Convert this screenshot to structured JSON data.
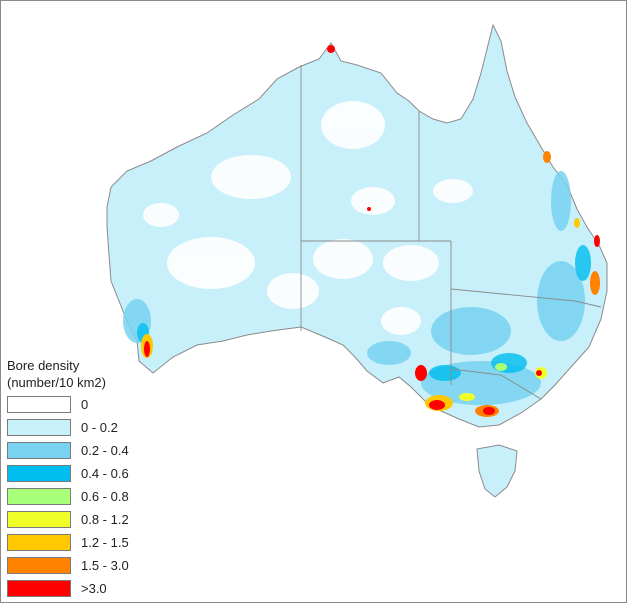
{
  "legend": {
    "title_line1": "Bore density",
    "title_line2": "(number/10 km2)",
    "items": [
      {
        "label": "0",
        "color": "#ffffff"
      },
      {
        "label": "0 - 0.2",
        "color": "#c8f0fa"
      },
      {
        "label": "0.2 - 0.4",
        "color": "#78d2f0"
      },
      {
        "label": "0.4 - 0.6",
        "color": "#00bef0"
      },
      {
        "label": "0.6 - 0.8",
        "color": "#a8ff78"
      },
      {
        "label": "0.8 - 1.2",
        "color": "#f0ff28"
      },
      {
        "label": "1.2 - 1.5",
        "color": "#ffc800"
      },
      {
        "label": "1.5 - 3.0",
        "color": "#ff8200"
      },
      {
        "label": ">3.0",
        "color": "#ff0000"
      }
    ]
  },
  "colors": {
    "land_base": "#c8f0fa",
    "coastline": "#8a8a8a",
    "state_border": "#8a8a8a"
  }
}
